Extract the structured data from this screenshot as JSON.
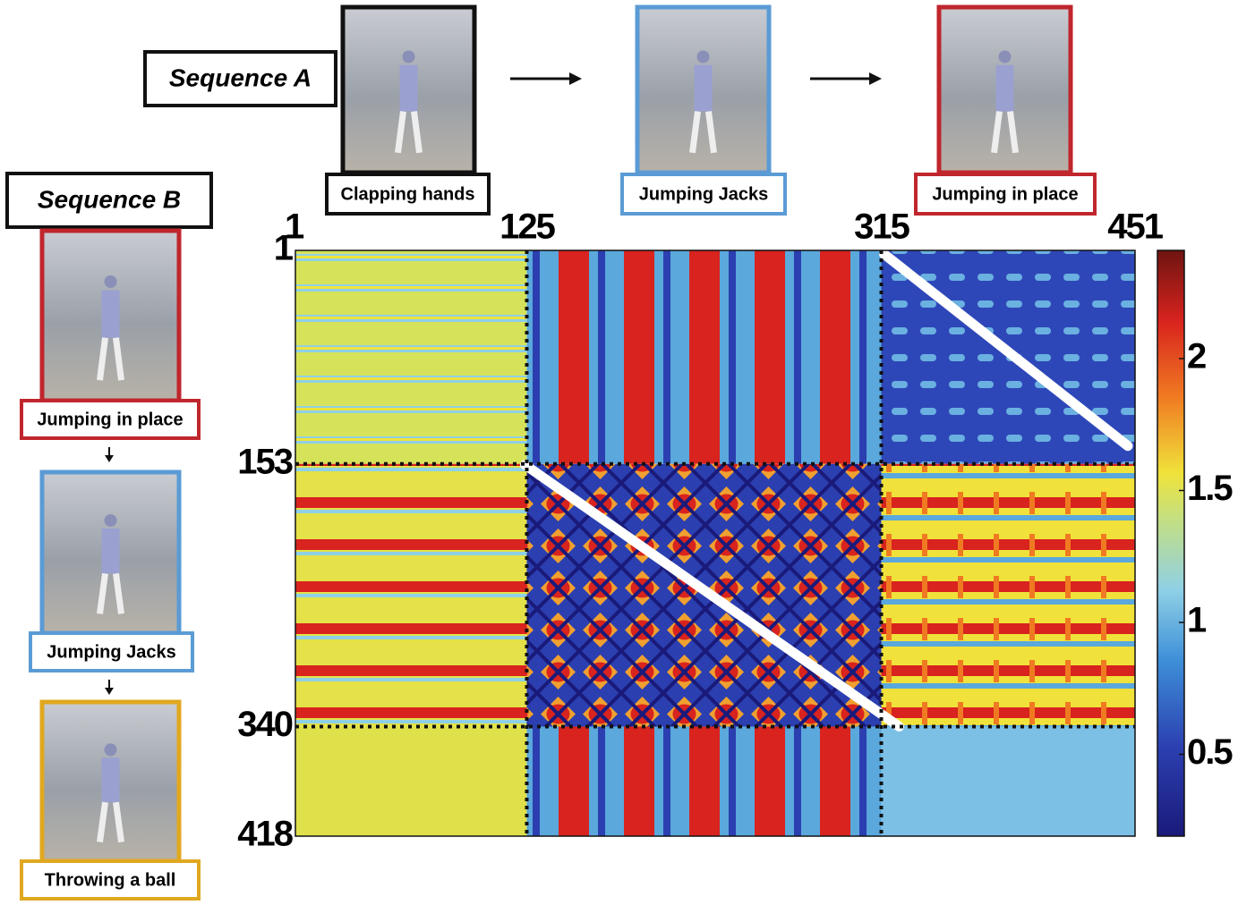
{
  "sequence_a": {
    "label": "Sequence A",
    "actions": [
      "Clapping hands",
      "Jumping Jacks",
      "Jumping in place"
    ]
  },
  "sequence_b": {
    "label": "Sequence B",
    "actions": [
      "Jumping in place",
      "Jumping Jacks",
      "Throwing a ball"
    ]
  },
  "chart_data": {
    "type": "heatmap",
    "xlim": [
      1,
      451
    ],
    "xticks": [
      1,
      125,
      315,
      451
    ],
    "ylim": [
      1,
      418
    ],
    "yticks": [
      1,
      153,
      340,
      418
    ],
    "clim": [
      0.19,
      2.41
    ],
    "cticks": [
      0.5,
      1,
      1.5,
      2
    ]
  }
}
